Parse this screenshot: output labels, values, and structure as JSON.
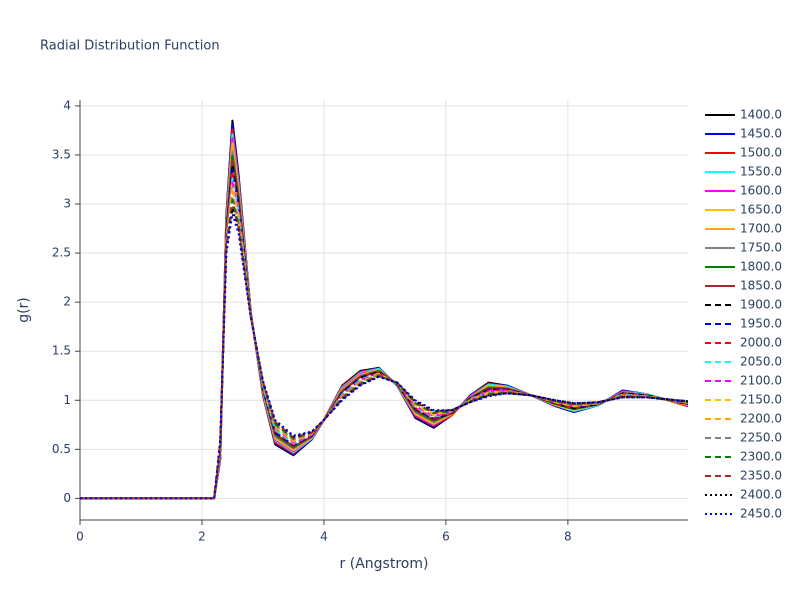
{
  "chart_data": {
    "type": "line",
    "title": "Radial Distribution Function",
    "x_label": "r (Angstrom)",
    "y_label": "g(r)",
    "xlim": [
      0,
      9.97
    ],
    "ylim": [
      -0.22,
      4.06
    ],
    "xticks": [
      0,
      2,
      4,
      6,
      8
    ],
    "yticks": [
      0,
      0.5,
      1,
      1.5,
      2,
      2.5,
      3,
      3.5,
      4
    ],
    "grid": true,
    "x": [
      0,
      1,
      2,
      2.2,
      2.3,
      2.4,
      2.5,
      2.6,
      2.8,
      3.0,
      3.2,
      3.5,
      3.8,
      4.0,
      4.3,
      4.6,
      4.9,
      5.2,
      5.5,
      5.8,
      6.1,
      6.4,
      6.7,
      7.0,
      7.4,
      7.8,
      8.1,
      8.5,
      8.9,
      9.3,
      9.97
    ],
    "series": [
      {
        "name": "1400.0",
        "color": "#000000",
        "dash": "solid",
        "values": [
          0,
          0,
          0,
          0,
          0.4,
          2.9,
          3.85,
          3.3,
          1.9,
          1.05,
          0.55,
          0.44,
          0.6,
          0.8,
          1.15,
          1.3,
          1.33,
          1.15,
          0.82,
          0.72,
          0.85,
          1.05,
          1.18,
          1.15,
          1.05,
          0.94,
          0.88,
          0.95,
          1.1,
          1.06,
          0.94
        ]
      },
      {
        "name": "1450.0",
        "color": "#0000ff",
        "dash": "solid",
        "values": [
          0,
          0,
          0,
          0,
          0.41,
          2.88,
          3.81,
          3.27,
          1.9,
          1.06,
          0.56,
          0.45,
          0.6,
          0.8,
          1.14,
          1.29,
          1.33,
          1.15,
          0.83,
          0.73,
          0.85,
          1.05,
          1.17,
          1.15,
          1.05,
          0.94,
          0.88,
          0.95,
          1.1,
          1.06,
          0.94
        ]
      },
      {
        "name": "1500.0",
        "color": "#ff0000",
        "dash": "solid",
        "values": [
          0,
          0,
          0,
          0,
          0.42,
          2.86,
          3.76,
          3.24,
          1.9,
          1.06,
          0.57,
          0.46,
          0.61,
          0.8,
          1.14,
          1.29,
          1.32,
          1.15,
          0.84,
          0.74,
          0.85,
          1.04,
          1.17,
          1.14,
          1.05,
          0.95,
          0.89,
          0.95,
          1.09,
          1.06,
          0.94
        ]
      },
      {
        "name": "1550.0",
        "color": "#00ffff",
        "dash": "solid",
        "values": [
          0,
          0,
          0,
          0,
          0.43,
          2.84,
          3.71,
          3.21,
          1.89,
          1.07,
          0.59,
          0.47,
          0.61,
          0.8,
          1.13,
          1.28,
          1.32,
          1.15,
          0.85,
          0.75,
          0.86,
          1.04,
          1.16,
          1.14,
          1.05,
          0.95,
          0.89,
          0.95,
          1.09,
          1.06,
          0.95
        ]
      },
      {
        "name": "1600.0",
        "color": "#ff00ff",
        "dash": "solid",
        "values": [
          0,
          0,
          0,
          0,
          0.44,
          2.82,
          3.67,
          3.19,
          1.89,
          1.08,
          0.6,
          0.48,
          0.62,
          0.8,
          1.12,
          1.27,
          1.31,
          1.16,
          0.85,
          0.75,
          0.86,
          1.04,
          1.15,
          1.13,
          1.05,
          0.95,
          0.9,
          0.96,
          1.09,
          1.05,
          0.95
        ]
      },
      {
        "name": "1650.0",
        "color": "#ffc000",
        "dash": "solid",
        "values": [
          0,
          0,
          0,
          0,
          0.45,
          2.8,
          3.62,
          3.16,
          1.89,
          1.09,
          0.61,
          0.49,
          0.62,
          0.8,
          1.11,
          1.26,
          1.31,
          1.16,
          0.86,
          0.76,
          0.86,
          1.03,
          1.15,
          1.13,
          1.05,
          0.95,
          0.9,
          0.96,
          1.08,
          1.05,
          0.95
        ]
      },
      {
        "name": "1700.0",
        "color": "#ffa500",
        "dash": "solid",
        "values": [
          0,
          0,
          0,
          0,
          0.46,
          2.79,
          3.58,
          3.13,
          1.89,
          1.09,
          0.62,
          0.5,
          0.62,
          0.8,
          1.11,
          1.26,
          1.3,
          1.16,
          0.87,
          0.77,
          0.86,
          1.03,
          1.14,
          1.13,
          1.05,
          0.96,
          0.91,
          0.96,
          1.08,
          1.05,
          0.95
        ]
      },
      {
        "name": "1750.0",
        "color": "#808080",
        "dash": "solid",
        "values": [
          0,
          0,
          0,
          0,
          0.47,
          2.77,
          3.53,
          3.1,
          1.88,
          1.1,
          0.63,
          0.51,
          0.63,
          0.8,
          1.1,
          1.25,
          1.3,
          1.16,
          0.88,
          0.78,
          0.87,
          1.03,
          1.13,
          1.12,
          1.05,
          0.96,
          0.91,
          0.96,
          1.08,
          1.05,
          0.96
        ]
      },
      {
        "name": "1800.0",
        "color": "#008000",
        "dash": "solid",
        "values": [
          0,
          0,
          0,
          0,
          0.48,
          2.75,
          3.49,
          3.07,
          1.88,
          1.11,
          0.65,
          0.52,
          0.63,
          0.8,
          1.09,
          1.24,
          1.3,
          1.16,
          0.89,
          0.79,
          0.87,
          1.02,
          1.13,
          1.12,
          1.05,
          0.96,
          0.91,
          0.96,
          1.07,
          1.05,
          0.96
        ]
      },
      {
        "name": "1850.0",
        "color": "#a52a2a",
        "dash": "solid",
        "values": [
          0,
          0,
          0,
          0,
          0.49,
          2.73,
          3.44,
          3.04,
          1.88,
          1.11,
          0.66,
          0.53,
          0.63,
          0.8,
          1.09,
          1.24,
          1.29,
          1.16,
          0.9,
          0.8,
          0.87,
          1.02,
          1.12,
          1.12,
          1.05,
          0.97,
          0.92,
          0.96,
          1.07,
          1.05,
          0.96
        ]
      },
      {
        "name": "1900.0",
        "color": "#000000",
        "dash": "dash",
        "values": [
          0,
          0,
          0,
          0,
          0.5,
          2.71,
          3.4,
          3.01,
          1.88,
          1.12,
          0.67,
          0.54,
          0.64,
          0.8,
          1.08,
          1.23,
          1.29,
          1.16,
          0.91,
          0.81,
          0.87,
          1.02,
          1.11,
          1.11,
          1.05,
          0.97,
          0.92,
          0.96,
          1.07,
          1.05,
          0.96
        ]
      },
      {
        "name": "1950.0",
        "color": "#0000ff",
        "dash": "dash",
        "values": [
          0,
          0,
          0,
          0,
          0.5,
          2.69,
          3.35,
          2.99,
          1.87,
          1.13,
          0.68,
          0.54,
          0.64,
          0.8,
          1.07,
          1.22,
          1.28,
          1.17,
          0.91,
          0.81,
          0.88,
          1.01,
          1.11,
          1.11,
          1.05,
          0.97,
          0.93,
          0.97,
          1.06,
          1.04,
          0.97
        ]
      },
      {
        "name": "2000.0",
        "color": "#ff0000",
        "dash": "dash",
        "values": [
          0,
          0,
          0,
          0,
          0.51,
          2.67,
          3.31,
          2.96,
          1.87,
          1.14,
          0.69,
          0.55,
          0.65,
          0.8,
          1.06,
          1.21,
          1.28,
          1.17,
          0.92,
          0.82,
          0.88,
          1.01,
          1.1,
          1.1,
          1.05,
          0.97,
          0.93,
          0.97,
          1.06,
          1.04,
          0.97
        ]
      },
      {
        "name": "2050.0",
        "color": "#00ffff",
        "dash": "dash",
        "values": [
          0,
          0,
          0,
          0,
          0.52,
          2.65,
          3.26,
          2.93,
          1.87,
          1.14,
          0.7,
          0.56,
          0.65,
          0.8,
          1.06,
          1.21,
          1.27,
          1.17,
          0.93,
          0.83,
          0.88,
          1.01,
          1.09,
          1.1,
          1.05,
          0.98,
          0.94,
          0.97,
          1.06,
          1.04,
          0.97
        ]
      },
      {
        "name": "2100.0",
        "color": "#ff00ff",
        "dash": "dash",
        "values": [
          0,
          0,
          0,
          0,
          0.53,
          2.63,
          3.22,
          2.9,
          1.87,
          1.15,
          0.72,
          0.57,
          0.65,
          0.8,
          1.05,
          1.2,
          1.27,
          1.17,
          0.94,
          0.84,
          0.88,
          1.0,
          1.09,
          1.1,
          1.05,
          0.98,
          0.94,
          0.97,
          1.05,
          1.04,
          0.97
        ]
      },
      {
        "name": "2150.0",
        "color": "#ffc000",
        "dash": "dash",
        "values": [
          0,
          0,
          0,
          0,
          0.54,
          2.61,
          3.17,
          2.87,
          1.86,
          1.16,
          0.73,
          0.58,
          0.66,
          0.8,
          1.04,
          1.19,
          1.27,
          1.17,
          0.95,
          0.85,
          0.89,
          1.0,
          1.08,
          1.09,
          1.05,
          0.98,
          0.94,
          0.97,
          1.05,
          1.04,
          0.98
        ]
      },
      {
        "name": "2200.0",
        "color": "#ffa500",
        "dash": "dash",
        "values": [
          0,
          0,
          0,
          0,
          0.55,
          2.6,
          3.13,
          2.84,
          1.86,
          1.16,
          0.74,
          0.59,
          0.66,
          0.8,
          1.04,
          1.19,
          1.26,
          1.17,
          0.96,
          0.86,
          0.89,
          1.0,
          1.07,
          1.09,
          1.05,
          0.99,
          0.95,
          0.97,
          1.05,
          1.04,
          0.98
        ]
      },
      {
        "name": "2250.0",
        "color": "#808080",
        "dash": "dash",
        "values": [
          0,
          0,
          0,
          0,
          0.56,
          2.58,
          3.08,
          2.81,
          1.86,
          1.17,
          0.75,
          0.6,
          0.67,
          0.8,
          1.03,
          1.18,
          1.26,
          1.17,
          0.97,
          0.87,
          0.89,
          0.99,
          1.07,
          1.09,
          1.05,
          0.99,
          0.95,
          0.97,
          1.04,
          1.04,
          0.98
        ]
      },
      {
        "name": "2300.0",
        "color": "#008000",
        "dash": "dash",
        "values": [
          0,
          0,
          0,
          0,
          0.57,
          2.56,
          3.04,
          2.79,
          1.86,
          1.18,
          0.76,
          0.61,
          0.67,
          0.8,
          1.02,
          1.17,
          1.25,
          1.18,
          0.97,
          0.87,
          0.89,
          0.99,
          1.06,
          1.08,
          1.05,
          0.99,
          0.96,
          0.98,
          1.04,
          1.03,
          0.98
        ]
      },
      {
        "name": "2350.0",
        "color": "#a52a2a",
        "dash": "dash",
        "values": [
          0,
          0,
          0,
          0,
          0.58,
          2.54,
          2.99,
          2.76,
          1.85,
          1.19,
          0.78,
          0.62,
          0.67,
          0.8,
          1.01,
          1.16,
          1.25,
          1.18,
          0.98,
          0.88,
          0.9,
          0.99,
          1.05,
          1.08,
          1.05,
          0.99,
          0.96,
          0.98,
          1.04,
          1.03,
          0.99
        ]
      },
      {
        "name": "2400.0",
        "color": "#000000",
        "dash": "dot",
        "values": [
          0,
          0,
          0,
          0,
          0.59,
          2.52,
          2.95,
          2.73,
          1.85,
          1.19,
          0.79,
          0.63,
          0.68,
          0.8,
          1.01,
          1.16,
          1.24,
          1.18,
          0.99,
          0.89,
          0.9,
          0.98,
          1.05,
          1.07,
          1.05,
          1.0,
          0.97,
          0.98,
          1.03,
          1.03,
          0.99
        ]
      },
      {
        "name": "2450.0",
        "color": "#0000ff",
        "dash": "dot",
        "values": [
          0,
          0,
          0,
          0,
          0.6,
          2.5,
          2.9,
          2.7,
          1.85,
          1.2,
          0.8,
          0.64,
          0.68,
          0.8,
          1.0,
          1.15,
          1.24,
          1.18,
          1.0,
          0.9,
          0.9,
          0.98,
          1.04,
          1.07,
          1.05,
          1.0,
          0.97,
          0.98,
          1.03,
          1.03,
          0.99
        ]
      }
    ]
  }
}
